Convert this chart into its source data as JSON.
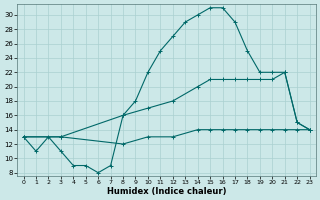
{
  "xlabel": "Humidex (Indice chaleur)",
  "xlim": [
    -0.5,
    23.5
  ],
  "ylim": [
    7.5,
    31.5
  ],
  "xticks": [
    0,
    1,
    2,
    3,
    4,
    5,
    6,
    7,
    8,
    9,
    10,
    11,
    12,
    13,
    14,
    15,
    16,
    17,
    18,
    19,
    20,
    21,
    22,
    23
  ],
  "yticks": [
    8,
    10,
    12,
    14,
    16,
    18,
    20,
    22,
    24,
    26,
    28,
    30
  ],
  "bg_color": "#cce8e8",
  "line_color": "#006868",
  "grid_color": "#aad0d0",
  "line1_x": [
    0,
    1,
    2,
    3,
    4,
    5,
    6,
    7,
    8,
    9,
    10,
    11,
    12,
    13,
    14,
    15,
    16,
    17,
    18,
    19,
    20,
    21,
    22,
    23
  ],
  "line1_y": [
    13,
    11,
    13,
    11,
    9,
    9,
    8,
    9,
    16,
    18,
    22,
    25,
    27,
    29,
    30,
    31,
    31,
    29,
    25,
    22,
    22,
    22,
    15,
    14
  ],
  "line2_x": [
    0,
    3,
    8,
    10,
    12,
    14,
    15,
    16,
    17,
    18,
    19,
    20,
    21,
    22,
    23
  ],
  "line2_y": [
    13,
    13,
    16,
    17,
    18,
    20,
    21,
    21,
    21,
    21,
    21,
    21,
    22,
    15,
    14
  ],
  "line3_x": [
    0,
    3,
    8,
    10,
    12,
    14,
    15,
    16,
    17,
    18,
    19,
    20,
    21,
    22,
    23
  ],
  "line3_y": [
    13,
    13,
    12,
    13,
    13,
    14,
    14,
    14,
    14,
    14,
    14,
    14,
    14,
    14,
    14
  ],
  "marker": "+",
  "markersize": 3,
  "linewidth": 0.8
}
